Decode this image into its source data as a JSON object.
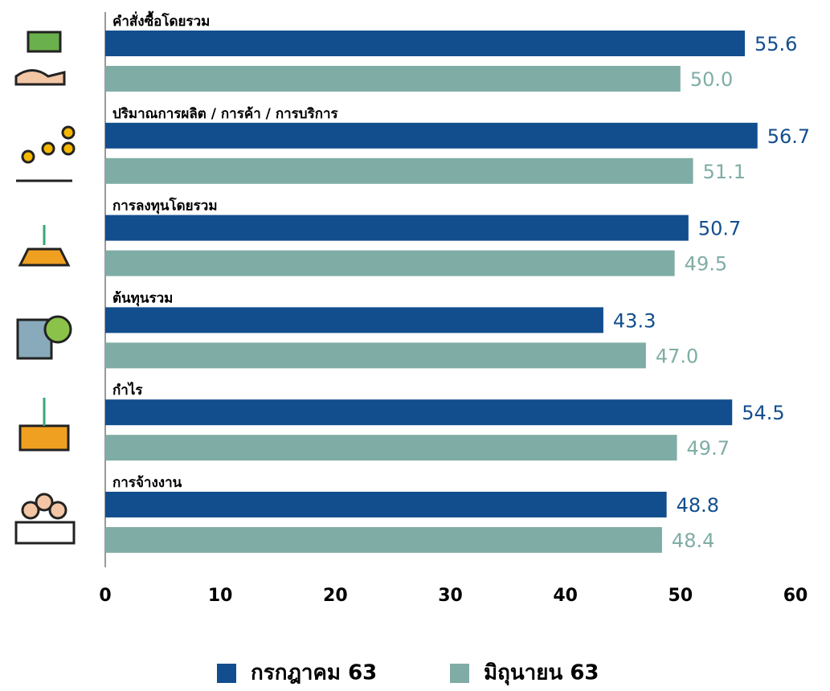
{
  "chart_data": {
    "type": "bar",
    "orientation": "horizontal",
    "categories": [
      "คำสั่งซื้อโดยรวม",
      "ปริมาณการผลิต / การค้า / การบริการ",
      "การลงทุนโดยรวม",
      "ต้นทุนรวม",
      "กำไร",
      "การจ้างงาน"
    ],
    "series": [
      {
        "name": "กรกฎาคม 63",
        "color": "#124e8e",
        "values": [
          55.6,
          56.7,
          50.7,
          43.3,
          54.5,
          48.8
        ],
        "value_labels": [
          "55.6",
          "56.7",
          "50.7",
          "43.3",
          "54.5",
          "48.8"
        ]
      },
      {
        "name": "มิถุนายน 63",
        "color": "#7fada5",
        "values": [
          50,
          51.1,
          49.5,
          47,
          49.7,
          48.4
        ],
        "value_labels": [
          "50.0",
          "51.1",
          "49.5",
          "47.0",
          "49.7",
          "48.4"
        ]
      }
    ],
    "xlim": [
      0,
      60
    ],
    "xticks": [
      0,
      10,
      20,
      30,
      40,
      50,
      60
    ],
    "grid": false,
    "legend": "bottom"
  }
}
